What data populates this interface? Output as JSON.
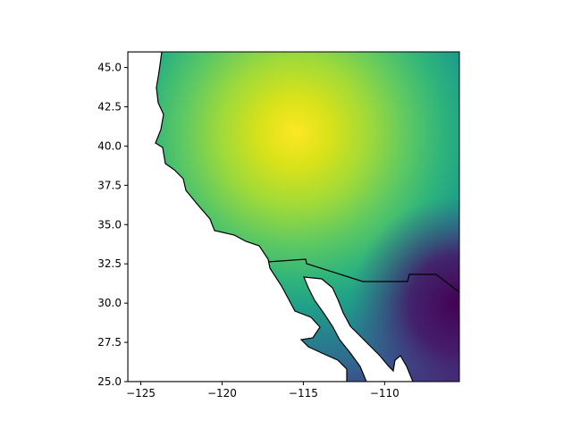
{
  "chart_data": {
    "type": "map",
    "xlim": [
      -125.8,
      -105.4
    ],
    "ylim": [
      25,
      46
    ],
    "xticks": [
      {
        "value": -125,
        "label": "−125"
      },
      {
        "value": -120,
        "label": "−120"
      },
      {
        "value": -115,
        "label": "−115"
      },
      {
        "value": -110,
        "label": "−110"
      }
    ],
    "yticks": [
      {
        "value": 25,
        "label": "25.0"
      },
      27.5,
      {
        "value": 30,
        "label": "30.0"
      },
      32.5,
      {
        "value": 35,
        "label": "35.0"
      },
      37.5,
      {
        "value": 40,
        "label": "40.0"
      },
      42.5,
      {
        "value": 45,
        "label": "45.0"
      }
    ]
  }
}
